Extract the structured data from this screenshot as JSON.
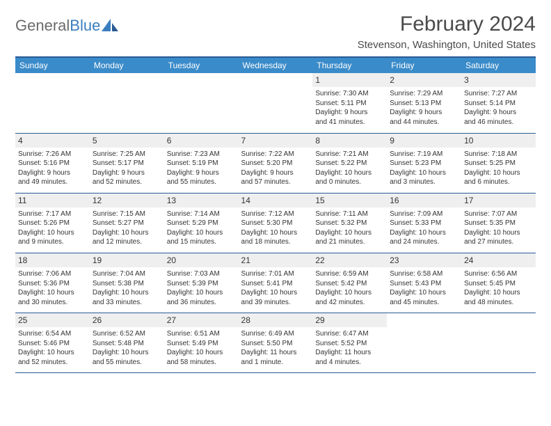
{
  "logo": {
    "text_gray": "General",
    "text_blue": "Blue"
  },
  "title": "February 2024",
  "location": "Stevenson, Washington, United States",
  "colors": {
    "header_bg": "#3a8bc9",
    "header_text": "#ffffff",
    "border": "#2a5a95",
    "daynum_bg": "#efefef",
    "logo_gray": "#6b6b6b",
    "logo_blue": "#3a7ebf",
    "text": "#333333"
  },
  "day_headers": [
    "Sunday",
    "Monday",
    "Tuesday",
    "Wednesday",
    "Thursday",
    "Friday",
    "Saturday"
  ],
  "weeks": [
    [
      {
        "blank": true
      },
      {
        "blank": true
      },
      {
        "blank": true
      },
      {
        "blank": true
      },
      {
        "day": "1",
        "sunrise": "Sunrise: 7:30 AM",
        "sunset": "Sunset: 5:11 PM",
        "daylight1": "Daylight: 9 hours",
        "daylight2": "and 41 minutes."
      },
      {
        "day": "2",
        "sunrise": "Sunrise: 7:29 AM",
        "sunset": "Sunset: 5:13 PM",
        "daylight1": "Daylight: 9 hours",
        "daylight2": "and 44 minutes."
      },
      {
        "day": "3",
        "sunrise": "Sunrise: 7:27 AM",
        "sunset": "Sunset: 5:14 PM",
        "daylight1": "Daylight: 9 hours",
        "daylight2": "and 46 minutes."
      }
    ],
    [
      {
        "day": "4",
        "sunrise": "Sunrise: 7:26 AM",
        "sunset": "Sunset: 5:16 PM",
        "daylight1": "Daylight: 9 hours",
        "daylight2": "and 49 minutes."
      },
      {
        "day": "5",
        "sunrise": "Sunrise: 7:25 AM",
        "sunset": "Sunset: 5:17 PM",
        "daylight1": "Daylight: 9 hours",
        "daylight2": "and 52 minutes."
      },
      {
        "day": "6",
        "sunrise": "Sunrise: 7:23 AM",
        "sunset": "Sunset: 5:19 PM",
        "daylight1": "Daylight: 9 hours",
        "daylight2": "and 55 minutes."
      },
      {
        "day": "7",
        "sunrise": "Sunrise: 7:22 AM",
        "sunset": "Sunset: 5:20 PM",
        "daylight1": "Daylight: 9 hours",
        "daylight2": "and 57 minutes."
      },
      {
        "day": "8",
        "sunrise": "Sunrise: 7:21 AM",
        "sunset": "Sunset: 5:22 PM",
        "daylight1": "Daylight: 10 hours",
        "daylight2": "and 0 minutes."
      },
      {
        "day": "9",
        "sunrise": "Sunrise: 7:19 AM",
        "sunset": "Sunset: 5:23 PM",
        "daylight1": "Daylight: 10 hours",
        "daylight2": "and 3 minutes."
      },
      {
        "day": "10",
        "sunrise": "Sunrise: 7:18 AM",
        "sunset": "Sunset: 5:25 PM",
        "daylight1": "Daylight: 10 hours",
        "daylight2": "and 6 minutes."
      }
    ],
    [
      {
        "day": "11",
        "sunrise": "Sunrise: 7:17 AM",
        "sunset": "Sunset: 5:26 PM",
        "daylight1": "Daylight: 10 hours",
        "daylight2": "and 9 minutes."
      },
      {
        "day": "12",
        "sunrise": "Sunrise: 7:15 AM",
        "sunset": "Sunset: 5:27 PM",
        "daylight1": "Daylight: 10 hours",
        "daylight2": "and 12 minutes."
      },
      {
        "day": "13",
        "sunrise": "Sunrise: 7:14 AM",
        "sunset": "Sunset: 5:29 PM",
        "daylight1": "Daylight: 10 hours",
        "daylight2": "and 15 minutes."
      },
      {
        "day": "14",
        "sunrise": "Sunrise: 7:12 AM",
        "sunset": "Sunset: 5:30 PM",
        "daylight1": "Daylight: 10 hours",
        "daylight2": "and 18 minutes."
      },
      {
        "day": "15",
        "sunrise": "Sunrise: 7:11 AM",
        "sunset": "Sunset: 5:32 PM",
        "daylight1": "Daylight: 10 hours",
        "daylight2": "and 21 minutes."
      },
      {
        "day": "16",
        "sunrise": "Sunrise: 7:09 AM",
        "sunset": "Sunset: 5:33 PM",
        "daylight1": "Daylight: 10 hours",
        "daylight2": "and 24 minutes."
      },
      {
        "day": "17",
        "sunrise": "Sunrise: 7:07 AM",
        "sunset": "Sunset: 5:35 PM",
        "daylight1": "Daylight: 10 hours",
        "daylight2": "and 27 minutes."
      }
    ],
    [
      {
        "day": "18",
        "sunrise": "Sunrise: 7:06 AM",
        "sunset": "Sunset: 5:36 PM",
        "daylight1": "Daylight: 10 hours",
        "daylight2": "and 30 minutes."
      },
      {
        "day": "19",
        "sunrise": "Sunrise: 7:04 AM",
        "sunset": "Sunset: 5:38 PM",
        "daylight1": "Daylight: 10 hours",
        "daylight2": "and 33 minutes."
      },
      {
        "day": "20",
        "sunrise": "Sunrise: 7:03 AM",
        "sunset": "Sunset: 5:39 PM",
        "daylight1": "Daylight: 10 hours",
        "daylight2": "and 36 minutes."
      },
      {
        "day": "21",
        "sunrise": "Sunrise: 7:01 AM",
        "sunset": "Sunset: 5:41 PM",
        "daylight1": "Daylight: 10 hours",
        "daylight2": "and 39 minutes."
      },
      {
        "day": "22",
        "sunrise": "Sunrise: 6:59 AM",
        "sunset": "Sunset: 5:42 PM",
        "daylight1": "Daylight: 10 hours",
        "daylight2": "and 42 minutes."
      },
      {
        "day": "23",
        "sunrise": "Sunrise: 6:58 AM",
        "sunset": "Sunset: 5:43 PM",
        "daylight1": "Daylight: 10 hours",
        "daylight2": "and 45 minutes."
      },
      {
        "day": "24",
        "sunrise": "Sunrise: 6:56 AM",
        "sunset": "Sunset: 5:45 PM",
        "daylight1": "Daylight: 10 hours",
        "daylight2": "and 48 minutes."
      }
    ],
    [
      {
        "day": "25",
        "sunrise": "Sunrise: 6:54 AM",
        "sunset": "Sunset: 5:46 PM",
        "daylight1": "Daylight: 10 hours",
        "daylight2": "and 52 minutes."
      },
      {
        "day": "26",
        "sunrise": "Sunrise: 6:52 AM",
        "sunset": "Sunset: 5:48 PM",
        "daylight1": "Daylight: 10 hours",
        "daylight2": "and 55 minutes."
      },
      {
        "day": "27",
        "sunrise": "Sunrise: 6:51 AM",
        "sunset": "Sunset: 5:49 PM",
        "daylight1": "Daylight: 10 hours",
        "daylight2": "and 58 minutes."
      },
      {
        "day": "28",
        "sunrise": "Sunrise: 6:49 AM",
        "sunset": "Sunset: 5:50 PM",
        "daylight1": "Daylight: 11 hours",
        "daylight2": "and 1 minute."
      },
      {
        "day": "29",
        "sunrise": "Sunrise: 6:47 AM",
        "sunset": "Sunset: 5:52 PM",
        "daylight1": "Daylight: 11 hours",
        "daylight2": "and 4 minutes."
      },
      {
        "blank": true
      },
      {
        "blank": true
      }
    ]
  ]
}
